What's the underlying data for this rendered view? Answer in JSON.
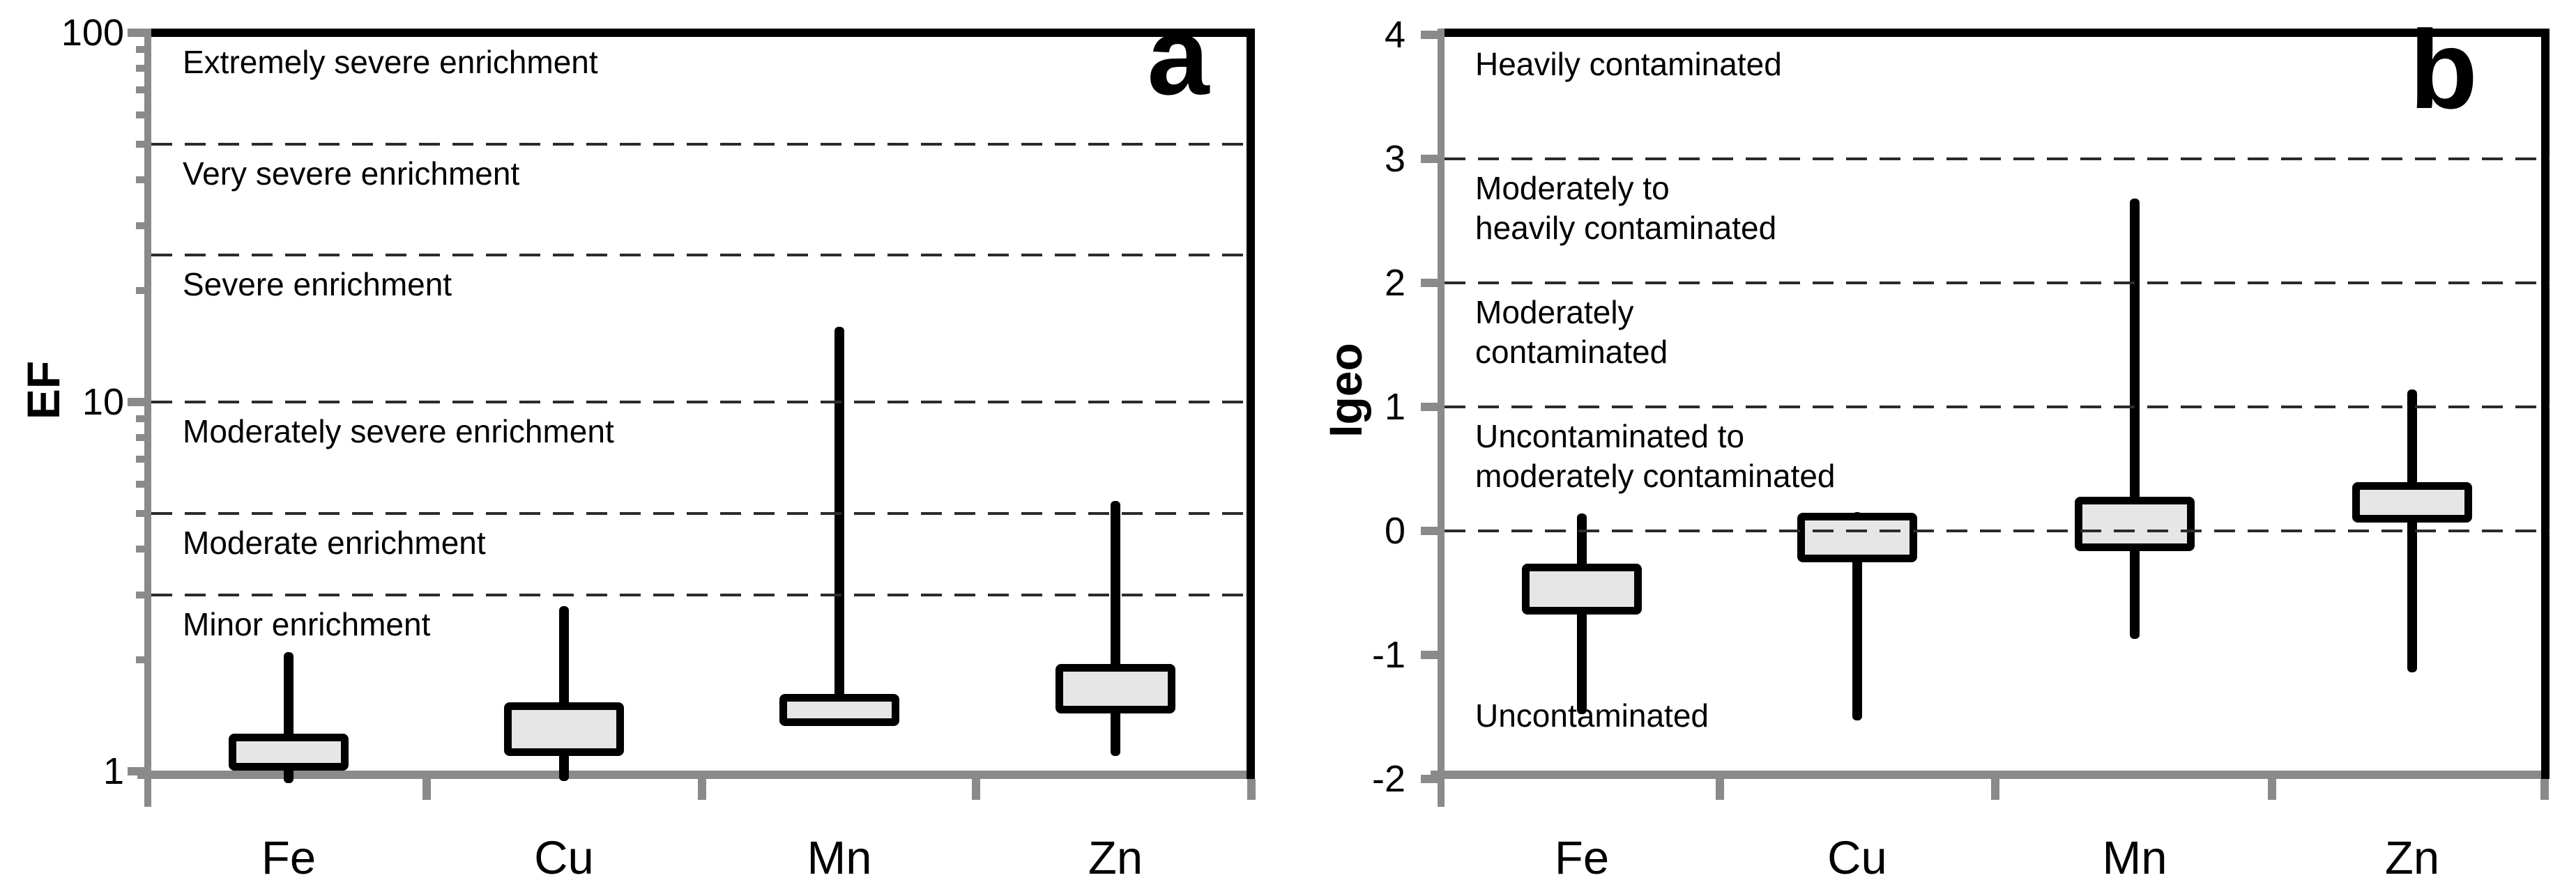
{
  "figure": {
    "description": "Two-panel box plot figure: enrichment factor (EF) and geoaccumulation index (Igeo) for four metals",
    "background_color": "#ffffff",
    "styles": {
      "box_fill": "#e6e6e6",
      "box_border": "#000000",
      "axis_gray": "#8a8a8a",
      "dash_color": "#2b2b2b",
      "text_color": "#000000"
    }
  },
  "chart_data": [
    {
      "type": "boxplot",
      "panel_label": "a",
      "ylabel": "EF",
      "yscale": "log",
      "ylim": [
        1,
        100
      ],
      "grid": "dashed horizontal reference lines",
      "legend_position": "none",
      "yticks": [
        {
          "value": 100,
          "label": "100"
        },
        {
          "value": 10,
          "label": "10"
        },
        {
          "value": 1,
          "label": "1"
        }
      ],
      "minor_yticks": [
        90,
        80,
        70,
        60,
        50,
        40,
        30,
        20,
        9,
        8,
        7,
        6,
        5,
        4,
        3,
        2
      ],
      "categories": [
        "Fe",
        "Cu",
        "Mn",
        "Zn"
      ],
      "series": [
        {
          "name": "Fe",
          "whisker_low": 0.93,
          "q1": 1.03,
          "q3": 1.23,
          "whisker_high": 2.1
        },
        {
          "name": "Cu",
          "whisker_low": 0.94,
          "q1": 1.13,
          "q3": 1.5,
          "whisker_high": 2.8
        },
        {
          "name": "Mn",
          "whisker_low": 1.33,
          "q1": 1.36,
          "q3": 1.58,
          "whisker_high": 16
        },
        {
          "name": "Zn",
          "whisker_low": 1.1,
          "q1": 1.47,
          "q3": 1.9,
          "whisker_high": 5.4
        }
      ],
      "reference_lines": [
        50,
        25,
        10,
        5,
        3
      ],
      "zone_labels": [
        {
          "text": "Extremely severe enrichment",
          "anchor": 100
        },
        {
          "text": "Very severe enrichment",
          "anchor": 50
        },
        {
          "text": "Severe enrichment",
          "anchor": 25
        },
        {
          "text": "Moderately severe enrichment",
          "anchor": 10
        },
        {
          "text": "Moderate enrichment",
          "anchor": 5
        },
        {
          "text": "Minor enrichment",
          "anchor": 3
        }
      ]
    },
    {
      "type": "boxplot",
      "panel_label": "b",
      "ylabel": "Igeo",
      "yscale": "linear",
      "ylim": [
        -2,
        4
      ],
      "grid": "dashed horizontal reference lines",
      "legend_position": "none",
      "yticks": [
        {
          "value": 4,
          "label": "4"
        },
        {
          "value": 3,
          "label": "3"
        },
        {
          "value": 2,
          "label": "2"
        },
        {
          "value": 1,
          "label": "1"
        },
        {
          "value": 0,
          "label": "0"
        },
        {
          "value": -1,
          "label": "-1"
        },
        {
          "value": -2,
          "label": "-2"
        }
      ],
      "minor_yticks": [],
      "categories": [
        "Fe",
        "Cu",
        "Mn",
        "Zn"
      ],
      "series": [
        {
          "name": "Fe",
          "whisker_low": -1.48,
          "q1": -0.64,
          "q3": -0.3,
          "whisker_high": 0.14
        },
        {
          "name": "Cu",
          "whisker_low": -1.53,
          "q1": -0.22,
          "q3": 0.11,
          "whisker_high": 0.15
        },
        {
          "name": "Mn",
          "whisker_low": -0.87,
          "q1": -0.13,
          "q3": 0.24,
          "whisker_high": 2.68
        },
        {
          "name": "Zn",
          "whisker_low": -1.14,
          "q1": 0.1,
          "q3": 0.36,
          "whisker_high": 1.14
        }
      ],
      "reference_lines": [
        3,
        2,
        1,
        0
      ],
      "zone_labels": [
        {
          "text": "Heavily contaminated",
          "anchor": 4
        },
        {
          "text": "Moderately to\nheavily contaminated",
          "anchor": 3
        },
        {
          "text": "Moderately\ncontaminated",
          "anchor": 2
        },
        {
          "text": "Uncontaminated to\nmoderately contaminated",
          "anchor": 1
        },
        {
          "text": "Uncontaminated",
          "anchor": -1.25
        }
      ]
    }
  ]
}
